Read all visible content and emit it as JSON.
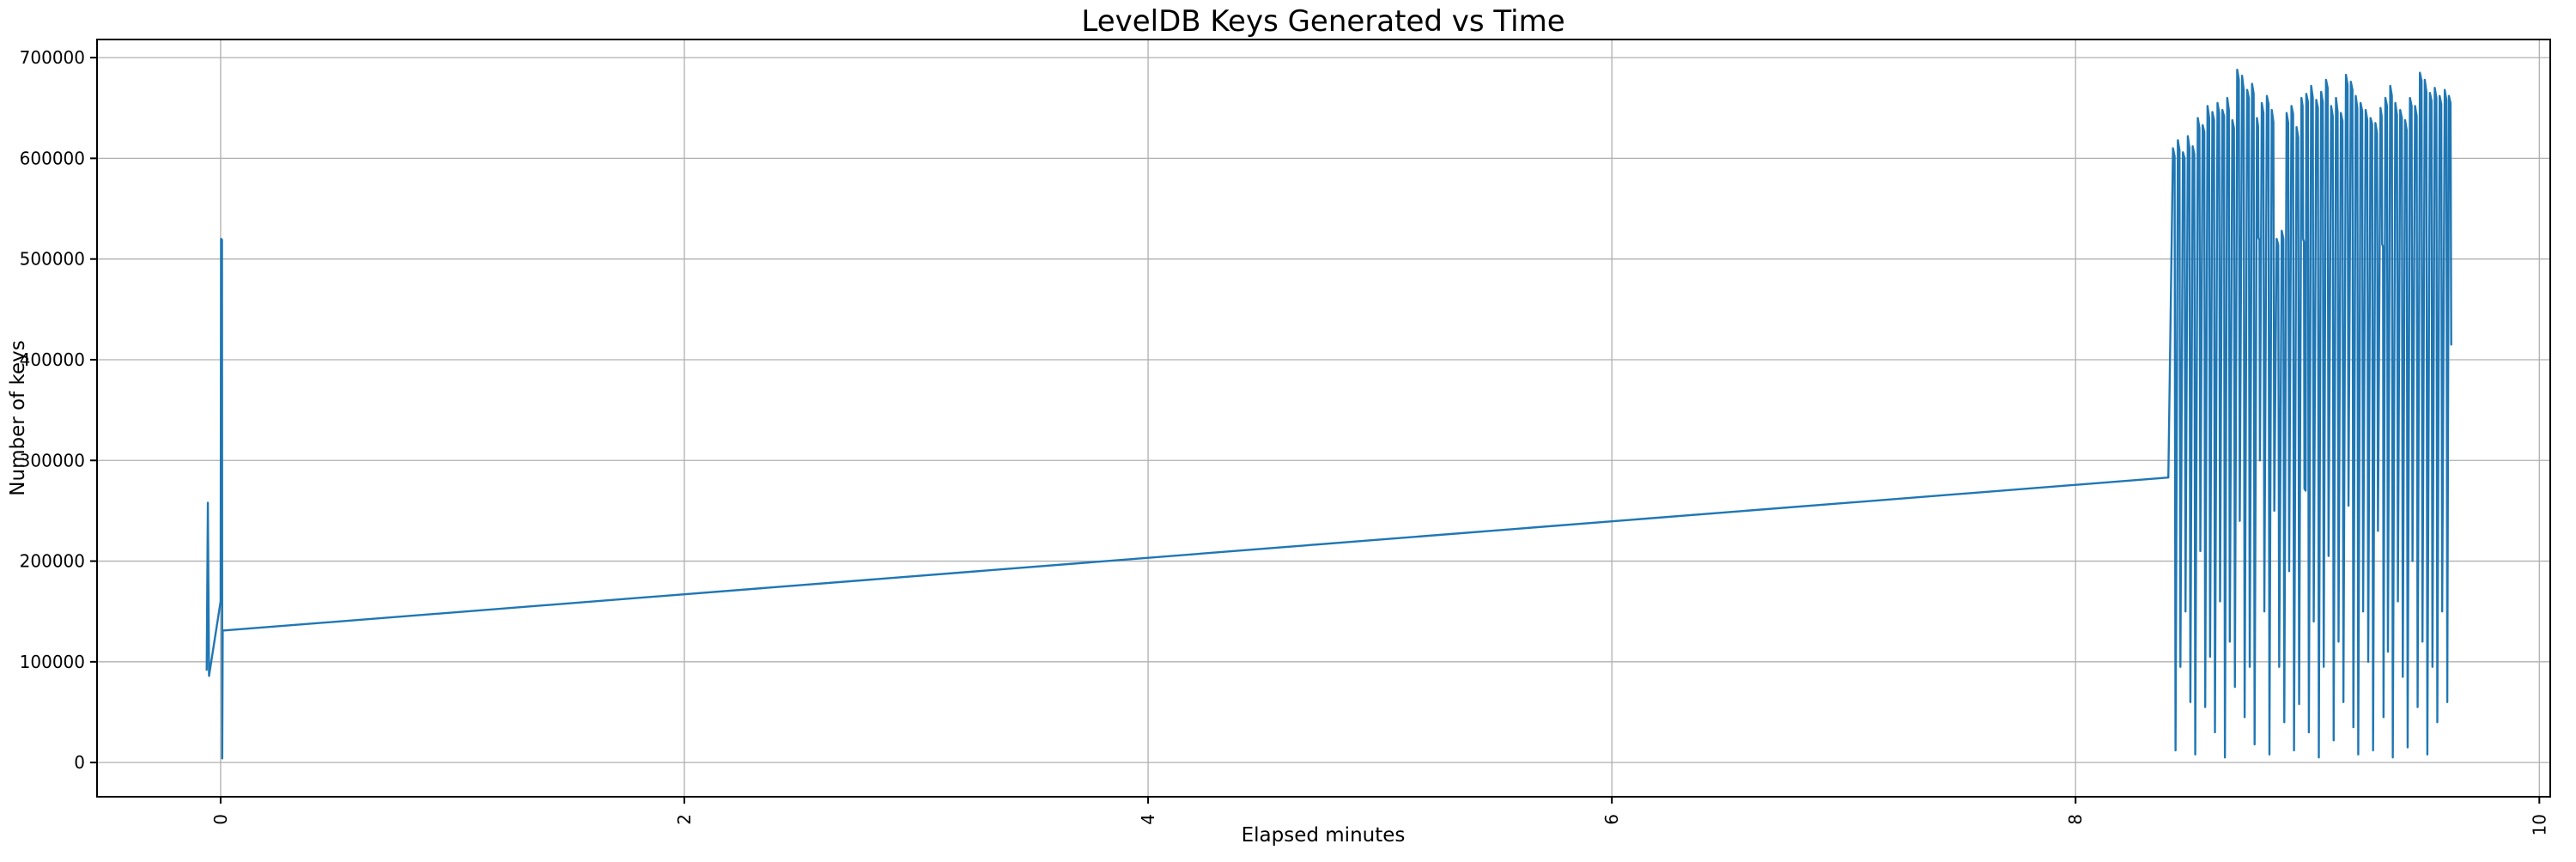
{
  "chart_data": {
    "type": "line",
    "title": "LevelDB Keys Generated vs Time",
    "xlabel": "Elapsed minutes",
    "ylabel": "Number of keys",
    "xlim": [
      -0.533,
      10.047
    ],
    "ylim": [
      -34000,
      718000
    ],
    "xticks": [
      0,
      2,
      4,
      6,
      8,
      10
    ],
    "yticks": [
      0,
      100000,
      200000,
      300000,
      400000,
      500000,
      600000,
      700000
    ],
    "x_tick_rotation": 90,
    "grid": true,
    "legend": "none",
    "line_color": "#1f77b4",
    "grid_color": "#b0b0b0",
    "axis_color": "#000000",
    "series": [
      {
        "name": "keys",
        "points": [
          [
            -0.06,
            92000
          ],
          [
            -0.055,
            258000
          ],
          [
            -0.05,
            86000
          ],
          [
            0.0,
            160000
          ],
          [
            0.002,
            520000
          ],
          [
            0.006,
            519000
          ],
          [
            0.007,
            4000
          ],
          [
            0.009,
            131000
          ],
          [
            8.4,
            283000
          ],
          [
            8.42,
            610000
          ],
          [
            8.427,
            602000
          ],
          [
            8.431,
            12000
          ],
          [
            8.441,
            618000
          ],
          [
            8.448,
            608000
          ],
          [
            8.452,
            95000
          ],
          [
            8.463,
            606000
          ],
          [
            8.47,
            600000
          ],
          [
            8.474,
            150000
          ],
          [
            8.484,
            622000
          ],
          [
            8.491,
            610000
          ],
          [
            8.495,
            60000
          ],
          [
            8.505,
            612000
          ],
          [
            8.512,
            604000
          ],
          [
            8.516,
            8000
          ],
          [
            8.527,
            640000
          ],
          [
            8.534,
            630000
          ],
          [
            8.538,
            210000
          ],
          [
            8.548,
            633000
          ],
          [
            8.555,
            626000
          ],
          [
            8.559,
            55000
          ],
          [
            8.569,
            652000
          ],
          [
            8.576,
            640000
          ],
          [
            8.58,
            105000
          ],
          [
            8.59,
            646000
          ],
          [
            8.597,
            638000
          ],
          [
            8.601,
            30000
          ],
          [
            8.612,
            655000
          ],
          [
            8.619,
            645000
          ],
          [
            8.623,
            160000
          ],
          [
            8.633,
            648000
          ],
          [
            8.64,
            642000
          ],
          [
            8.644,
            5000
          ],
          [
            8.654,
            660000
          ],
          [
            8.661,
            648000
          ],
          [
            8.665,
            120000
          ],
          [
            8.676,
            638000
          ],
          [
            8.683,
            630000
          ],
          [
            8.687,
            75000
          ],
          [
            8.697,
            688000
          ],
          [
            8.704,
            678000
          ],
          [
            8.708,
            240000
          ],
          [
            8.718,
            682000
          ],
          [
            8.725,
            668000
          ],
          [
            8.729,
            45000
          ],
          [
            8.74,
            668000
          ],
          [
            8.747,
            660000
          ],
          [
            8.751,
            95000
          ],
          [
            8.761,
            674000
          ],
          [
            8.768,
            664000
          ],
          [
            8.772,
            18000
          ],
          [
            8.782,
            640000
          ],
          [
            8.787,
            632000
          ],
          [
            8.789,
            521000
          ],
          [
            8.793,
            519000
          ],
          [
            8.795,
            300000
          ],
          [
            8.803,
            655000
          ],
          [
            8.81,
            645000
          ],
          [
            8.814,
            150000
          ],
          [
            8.825,
            662000
          ],
          [
            8.832,
            654000
          ],
          [
            8.836,
            8000
          ],
          [
            8.846,
            648000
          ],
          [
            8.853,
            636000
          ],
          [
            8.857,
            250000
          ],
          [
            8.867,
            520000
          ],
          [
            8.874,
            514000
          ],
          [
            8.878,
            95000
          ],
          [
            8.889,
            528000
          ],
          [
            8.896,
            520000
          ],
          [
            8.9,
            40000
          ],
          [
            8.91,
            645000
          ],
          [
            8.917,
            635000
          ],
          [
            8.921,
            190000
          ],
          [
            8.931,
            652000
          ],
          [
            8.938,
            644000
          ],
          [
            8.942,
            12000
          ],
          [
            8.953,
            631000
          ],
          [
            8.96,
            621000
          ],
          [
            8.964,
            58000
          ],
          [
            8.974,
            660000
          ],
          [
            8.979,
            652000
          ],
          [
            8.981,
            520000
          ],
          [
            8.985,
            517000
          ],
          [
            8.987,
            272000
          ],
          [
            8.992,
            270000
          ],
          [
            8.995,
            664000
          ],
          [
            9.002,
            656000
          ],
          [
            9.006,
            30000
          ],
          [
            9.016,
            672000
          ],
          [
            9.023,
            660000
          ],
          [
            9.027,
            140000
          ],
          [
            9.038,
            658000
          ],
          [
            9.045,
            650000
          ],
          [
            9.049,
            5000
          ],
          [
            9.059,
            666000
          ],
          [
            9.066,
            656000
          ],
          [
            9.07,
            95000
          ],
          [
            9.08,
            678000
          ],
          [
            9.087,
            670000
          ],
          [
            9.091,
            205000
          ],
          [
            9.102,
            652000
          ],
          [
            9.109,
            642000
          ],
          [
            9.113,
            22000
          ],
          [
            9.123,
            660000
          ],
          [
            9.13,
            646000
          ],
          [
            9.134,
            120000
          ],
          [
            9.144,
            645000
          ],
          [
            9.151,
            637000
          ],
          [
            9.155,
            60000
          ],
          [
            9.166,
            683000
          ],
          [
            9.173,
            673000
          ],
          [
            9.177,
            255000
          ],
          [
            9.187,
            676000
          ],
          [
            9.194,
            668000
          ],
          [
            9.198,
            35000
          ],
          [
            9.208,
            662000
          ],
          [
            9.215,
            650000
          ],
          [
            9.219,
            8000
          ],
          [
            9.229,
            655000
          ],
          [
            9.236,
            647000
          ],
          [
            9.24,
            150000
          ],
          [
            9.251,
            648000
          ],
          [
            9.258,
            638000
          ],
          [
            9.262,
            100000
          ],
          [
            9.272,
            640000
          ],
          [
            9.279,
            634000
          ],
          [
            9.283,
            12000
          ],
          [
            9.293,
            635000
          ],
          [
            9.3,
            625000
          ],
          [
            9.304,
            230000
          ],
          [
            9.315,
            650000
          ],
          [
            9.32,
            642000
          ],
          [
            9.322,
            515000
          ],
          [
            9.326,
            512000
          ],
          [
            9.328,
            45000
          ],
          [
            9.336,
            660000
          ],
          [
            9.343,
            652000
          ],
          [
            9.347,
            110000
          ],
          [
            9.357,
            672000
          ],
          [
            9.364,
            662000
          ],
          [
            9.368,
            5000
          ],
          [
            9.379,
            655000
          ],
          [
            9.386,
            643000
          ],
          [
            9.39,
            160000
          ],
          [
            9.4,
            648000
          ],
          [
            9.407,
            640000
          ],
          [
            9.411,
            85000
          ],
          [
            9.421,
            638000
          ],
          [
            9.428,
            628000
          ],
          [
            9.432,
            15000
          ],
          [
            9.442,
            660000
          ],
          [
            9.449,
            652000
          ],
          [
            9.453,
            200000
          ],
          [
            9.464,
            652000
          ],
          [
            9.471,
            642000
          ],
          [
            9.475,
            55000
          ],
          [
            9.485,
            685000
          ],
          [
            9.492,
            677000
          ],
          [
            9.496,
            120000
          ],
          [
            9.506,
            678000
          ],
          [
            9.513,
            666000
          ],
          [
            9.517,
            8000
          ],
          [
            9.528,
            665000
          ],
          [
            9.535,
            657000
          ],
          [
            9.539,
            95000
          ],
          [
            9.549,
            670000
          ],
          [
            9.556,
            660000
          ],
          [
            9.56,
            40000
          ],
          [
            9.57,
            662000
          ],
          [
            9.577,
            654000
          ],
          [
            9.581,
            150000
          ],
          [
            9.592,
            668000
          ],
          [
            9.599,
            658000
          ],
          [
            9.603,
            60000
          ],
          [
            9.61,
            662000
          ],
          [
            9.617,
            655000
          ],
          [
            9.62,
            415000
          ]
        ]
      }
    ]
  }
}
